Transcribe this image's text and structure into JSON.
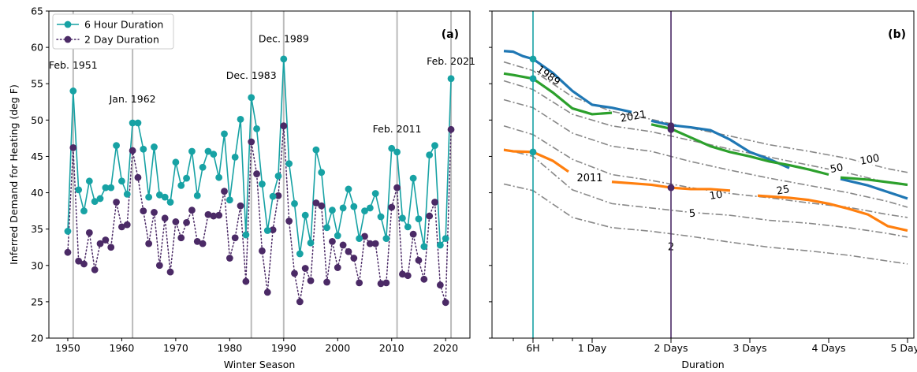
{
  "chart_data": [
    {
      "type": "line",
      "panel_label": "(a)",
      "xlabel": "Winter Season",
      "ylabel": "Inferred Demand for Heating (deg F)",
      "xlim": [
        1946.5,
        2024.5
      ],
      "ylim": [
        20,
        65
      ],
      "xticks": [
        "1950",
        "1960",
        "1970",
        "1980",
        "1990",
        "2000",
        "2010",
        "2020"
      ],
      "yticks": [
        "20",
        "25",
        "30",
        "35",
        "40",
        "45",
        "50",
        "55",
        "60",
        "65"
      ],
      "legend_position": "top-left",
      "colors": {
        "six_hour": "#17a2a4",
        "two_day": "#4b2a66",
        "event_line": "#bbbbbb"
      },
      "x": [
        1950,
        1951,
        1952,
        1953,
        1954,
        1955,
        1956,
        1957,
        1958,
        1959,
        1960,
        1961,
        1962,
        1963,
        1964,
        1965,
        1966,
        1967,
        1968,
        1969,
        1970,
        1971,
        1972,
        1973,
        1974,
        1975,
        1976,
        1977,
        1978,
        1979,
        1980,
        1981,
        1982,
        1983,
        1984,
        1985,
        1986,
        1987,
        1988,
        1989,
        1990,
        1991,
        1992,
        1993,
        1994,
        1995,
        1996,
        1997,
        1998,
        1999,
        2000,
        2001,
        2002,
        2003,
        2004,
        2005,
        2006,
        2007,
        2008,
        2009,
        2010,
        2011,
        2012,
        2013,
        2014,
        2015,
        2016,
        2017,
        2018,
        2019,
        2020,
        2021
      ],
      "series": [
        {
          "name": "6 Hour Duration",
          "style": "solid",
          "values": [
            34.7,
            54.0,
            40.4,
            37.5,
            41.6,
            38.8,
            39.2,
            40.7,
            40.7,
            46.5,
            41.6,
            39.8,
            49.6,
            49.6,
            46.0,
            39.4,
            46.3,
            39.7,
            39.4,
            38.7,
            44.2,
            41.0,
            42.0,
            45.7,
            39.6,
            43.5,
            45.7,
            45.3,
            42.1,
            48.1,
            39.0,
            44.9,
            50.1,
            34.2,
            53.1,
            48.8,
            41.2,
            34.8,
            39.5,
            42.3,
            58.4,
            44.0,
            38.5,
            31.6,
            36.9,
            33.1,
            45.9,
            42.8,
            35.2,
            37.6,
            34.1,
            37.9,
            40.5,
            38.1,
            33.7,
            37.5,
            37.9,
            39.9,
            36.7,
            33.7,
            46.1,
            45.6,
            36.5,
            35.3,
            42.0,
            36.4,
            32.6,
            45.2,
            46.5,
            32.8,
            33.7,
            55.7
          ]
        },
        {
          "name": "2 Day Duration",
          "style": "dotted",
          "values": [
            31.8,
            46.2,
            30.6,
            30.2,
            34.5,
            29.4,
            33.0,
            33.5,
            32.5,
            38.7,
            35.3,
            35.6,
            45.8,
            42.1,
            37.5,
            33.0,
            37.3,
            30.0,
            36.5,
            29.1,
            36.0,
            33.8,
            35.9,
            37.6,
            33.3,
            33.0,
            37.0,
            36.8,
            36.9,
            40.2,
            31.0,
            33.8,
            38.2,
            27.8,
            47.0,
            42.6,
            32.0,
            26.3,
            34.9,
            39.6,
            49.2,
            36.1,
            28.9,
            25.0,
            29.6,
            27.9,
            38.6,
            38.2,
            27.7,
            33.3,
            29.7,
            32.8,
            31.9,
            31.0,
            27.6,
            34.0,
            33.0,
            33.0,
            27.5,
            27.6,
            38.0,
            40.7,
            28.8,
            28.6,
            34.3,
            30.7,
            28.1,
            36.8,
            38.7,
            27.3,
            24.9,
            48.7
          ]
        }
      ],
      "event_lines": [
        {
          "year": 1951,
          "label": "Feb. 1951",
          "label_y": 57.1
        },
        {
          "year": 1962,
          "label": "Jan. 1962",
          "label_y": 52.4
        },
        {
          "year": 1984,
          "label": "Dec. 1983",
          "label_y": 55.7
        },
        {
          "year": 1990,
          "label": "Dec. 1989",
          "label_y": 60.7
        },
        {
          "year": 2011,
          "label": "Feb. 2011",
          "label_y": 48.3
        },
        {
          "year": 2021,
          "label": "Feb. 2021",
          "label_y": 57.6
        }
      ]
    },
    {
      "type": "line",
      "panel_label": "(b)",
      "xlabel": "Duration",
      "ylim": [
        20,
        65
      ],
      "xlim": [
        -0.27,
        5.08
      ],
      "xticks": [
        {
          "value": 0.25,
          "label": "6H"
        },
        {
          "value": 1,
          "label": "1 Day"
        },
        {
          "value": 2,
          "label": "2 Days"
        },
        {
          "value": 3,
          "label": "3 Days"
        },
        {
          "value": 4,
          "label": "4 Days"
        },
        {
          "value": 5,
          "label": "5 Days"
        }
      ],
      "minor_xticks": [
        0,
        0.5,
        0.75
      ],
      "vlines": [
        {
          "x": 0.25,
          "color": "#17a2a4"
        },
        {
          "x": 2,
          "color": "#4b2a66"
        }
      ],
      "return_period_curves": [
        {
          "label": "100",
          "x": [
            -0.12,
            0.25,
            0.75,
            1.25,
            1.75,
            2.25,
            2.75,
            3.25,
            3.75,
            4.25,
            4.75,
            5.0
          ],
          "y": [
            58.0,
            56.8,
            53.2,
            51.2,
            50.1,
            48.9,
            47.8,
            46.6,
            45.7,
            44.7,
            43.3,
            42.8
          ]
        },
        {
          "label": "50",
          "x": [
            -0.12,
            0.25,
            0.75,
            1.25,
            1.75,
            2.25,
            2.75,
            3.25,
            3.75,
            4.25,
            4.75,
            5.0
          ],
          "y": [
            55.4,
            54.2,
            50.8,
            49.2,
            48.4,
            47.2,
            46.0,
            44.9,
            43.8,
            42.7,
            41.4,
            41.0
          ]
        },
        {
          "label": "25",
          "x": [
            -0.12,
            0.25,
            0.75,
            1.25,
            1.75,
            2.25,
            2.75,
            3.25,
            3.75,
            4.25,
            4.75,
            5.0
          ],
          "y": [
            52.8,
            51.7,
            48.2,
            46.4,
            45.7,
            44.3,
            43.1,
            42.0,
            41.0,
            40.0,
            38.8,
            38.0
          ]
        },
        {
          "label": "10",
          "x": [
            -0.12,
            0.25,
            0.75,
            1.25,
            1.75,
            2.25,
            2.75,
            3.25,
            3.75,
            4.25,
            4.75,
            5.0
          ],
          "y": [
            49.2,
            48.0,
            44.6,
            42.5,
            41.7,
            40.7,
            39.9,
            39.3,
            38.6,
            38.0,
            37.0,
            36.6
          ]
        },
        {
          "label": "5",
          "x": [
            -0.12,
            0.25,
            0.75,
            1.25,
            1.75,
            2.25,
            2.75,
            3.25,
            3.75,
            4.25,
            4.75,
            5.0
          ],
          "y": [
            46.0,
            45.0,
            40.4,
            38.5,
            37.9,
            37.3,
            36.9,
            36.2,
            35.8,
            35.2,
            34.4,
            33.9
          ]
        },
        {
          "label": "2",
          "x": [
            -0.12,
            0.25,
            0.75,
            1.25,
            1.75,
            2.25,
            2.75,
            3.25,
            3.75,
            4.25,
            4.75,
            5.0
          ],
          "y": [
            41.2,
            40.3,
            36.6,
            35.2,
            34.7,
            34.0,
            33.2,
            32.5,
            32.0,
            31.4,
            30.6,
            30.2
          ]
        }
      ],
      "contour_labels": [
        {
          "text": "100",
          "x": 4.52,
          "y": 44.6,
          "angle": 11
        },
        {
          "text": "50",
          "x": 4.1,
          "y": 43.4,
          "angle": 11
        },
        {
          "text": "25",
          "x": 3.42,
          "y": 40.4,
          "angle": 10
        },
        {
          "text": "10",
          "x": 2.57,
          "y": 39.7,
          "angle": 9
        },
        {
          "text": "5",
          "x": 2.27,
          "y": 37.2,
          "angle": 6
        },
        {
          "text": "2",
          "x": 2.0,
          "y": 32.6,
          "angle": 0
        }
      ],
      "series": [
        {
          "name": "1989",
          "color": "#1f77b4",
          "segments": [
            {
              "x": [
                -0.12,
                0.0,
                0.12,
                0.25,
                0.5,
                0.75,
                1.0,
                1.25,
                1.5
              ],
              "y": [
                59.5,
                59.4,
                58.8,
                58.4,
                56.5,
                54.0,
                52.1,
                51.7,
                51.1
              ]
            },
            {
              "x": [
                1.75,
                2.0,
                2.25,
                2.5,
                2.75,
                3.0,
                3.25,
                3.5
              ],
              "y": [
                49.9,
                49.3,
                49.0,
                48.6,
                47.3,
                45.6,
                44.6,
                43.4
              ]
            },
            {
              "x": [
                4.15,
                4.5,
                5.0
              ],
              "y": [
                41.9,
                41.0,
                39.2
              ]
            }
          ],
          "label": {
            "text": "1989",
            "x": 0.45,
            "y": 56.2,
            "angle": 35
          }
        },
        {
          "name": "2021",
          "color": "#2ca02c",
          "segments": [
            {
              "x": [
                -0.12,
                0.0,
                0.25,
                0.5,
                0.75,
                1.0,
                1.25
              ],
              "y": [
                56.4,
                56.2,
                55.7,
                53.8,
                51.6,
                50.8,
                51.0
              ]
            },
            {
              "x": [
                1.75,
                2.0,
                2.25,
                2.5,
                2.75,
                3.0,
                3.25,
                3.5,
                3.75,
                4.0
              ],
              "y": [
                49.4,
                48.8,
                47.6,
                46.4,
                45.6,
                45.0,
                44.3,
                43.8,
                43.2,
                42.5
              ]
            },
            {
              "x": [
                4.15,
                4.5,
                5.0
              ],
              "y": [
                42.1,
                41.8,
                41.1
              ]
            }
          ],
          "label": {
            "text": "2021",
            "x": 1.52,
            "y": 50.6,
            "angle": -10
          }
        },
        {
          "name": "2011",
          "color": "#ff7f0e",
          "segments": [
            {
              "x": [
                -0.12,
                0.0,
                0.25,
                0.5,
                0.7
              ],
              "y": [
                45.9,
                45.7,
                45.6,
                44.4,
                42.9
              ]
            },
            {
              "x": [
                1.25,
                1.5,
                1.75,
                2.0,
                2.25,
                2.5,
                2.75
              ],
              "y": [
                41.5,
                41.3,
                41.1,
                40.7,
                40.5,
                40.5,
                40.3
              ]
            },
            {
              "x": [
                3.1,
                3.5,
                3.75,
                4.0,
                4.25,
                4.5,
                4.75,
                5.0
              ],
              "y": [
                39.6,
                39.3,
                39.0,
                38.5,
                37.8,
                37.0,
                35.4,
                34.8
              ]
            }
          ],
          "label": {
            "text": "2011",
            "x": 0.97,
            "y": 42.1,
            "angle": 0
          }
        }
      ],
      "markers": [
        {
          "x": 0.25,
          "y": 58.4,
          "color": "#17a2a4"
        },
        {
          "x": 0.25,
          "y": 55.7,
          "color": "#17a2a4"
        },
        {
          "x": 0.25,
          "y": 45.6,
          "color": "#17a2a4"
        },
        {
          "x": 2,
          "y": 49.2,
          "color": "#4b2a66"
        },
        {
          "x": 2,
          "y": 48.7,
          "color": "#4b2a66"
        },
        {
          "x": 2,
          "y": 40.7,
          "color": "#4b2a66"
        }
      ]
    }
  ]
}
